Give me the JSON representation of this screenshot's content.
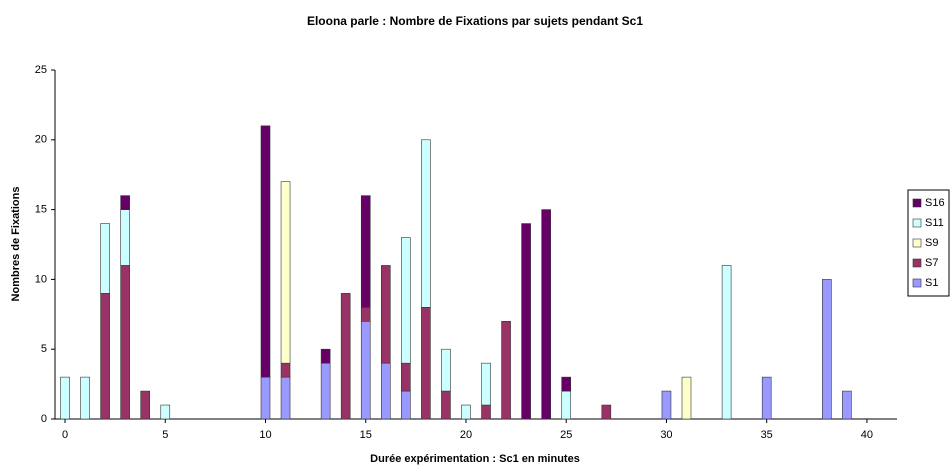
{
  "chart_data": {
    "type": "bar",
    "stacked": true,
    "title": "Eloona parle : Nombre de Fixations par sujets pendant Sc1",
    "x_label": "Durée expérimentation : Sc1 en minutes",
    "y_label": "Nombres de Fixations",
    "x": [
      0,
      1,
      2,
      3,
      4,
      5,
      10,
      11,
      13,
      14,
      15,
      16,
      17,
      18,
      19,
      20,
      21,
      22,
      23,
      24,
      25,
      27,
      30,
      31,
      33,
      35,
      38,
      39
    ],
    "series": [
      {
        "name": "S1",
        "color": "#9999ff",
        "values": [
          null,
          null,
          null,
          null,
          null,
          null,
          3,
          3,
          4,
          null,
          7,
          4,
          2,
          null,
          null,
          null,
          null,
          null,
          null,
          null,
          null,
          null,
          2,
          null,
          null,
          3,
          10,
          2
        ]
      },
      {
        "name": "S7",
        "color": "#993366",
        "values": [
          null,
          null,
          9,
          11,
          2,
          null,
          null,
          1,
          null,
          9,
          1,
          7,
          2,
          8,
          2,
          null,
          1,
          7,
          null,
          null,
          null,
          1,
          null,
          null,
          null,
          null,
          null,
          null
        ]
      },
      {
        "name": "S9",
        "color": "#ffffcc",
        "values": [
          null,
          null,
          null,
          null,
          null,
          null,
          null,
          13,
          null,
          null,
          null,
          null,
          null,
          null,
          null,
          null,
          null,
          null,
          null,
          null,
          null,
          null,
          null,
          3,
          null,
          null,
          null,
          null
        ]
      },
      {
        "name": "S11",
        "color": "#ccffff",
        "values": [
          3,
          3,
          5,
          4,
          null,
          1,
          null,
          null,
          null,
          null,
          null,
          null,
          9,
          12,
          3,
          1,
          3,
          null,
          null,
          null,
          2,
          null,
          null,
          null,
          11,
          null,
          null,
          null
        ]
      },
      {
        "name": "S16",
        "color": "#660066",
        "values": [
          null,
          null,
          null,
          1,
          null,
          null,
          18,
          null,
          1,
          null,
          8,
          null,
          null,
          null,
          null,
          null,
          null,
          null,
          14,
          15,
          1,
          null,
          null,
          null,
          null,
          null,
          null,
          null
        ]
      }
    ],
    "xlim": [
      -0.5,
      41.5
    ],
    "xticks": [
      0,
      5,
      10,
      15,
      20,
      25,
      30,
      35,
      40
    ],
    "ylim": [
      0,
      25
    ],
    "yticks": [
      0,
      5,
      10,
      15,
      20,
      25
    ],
    "legend": "right"
  }
}
